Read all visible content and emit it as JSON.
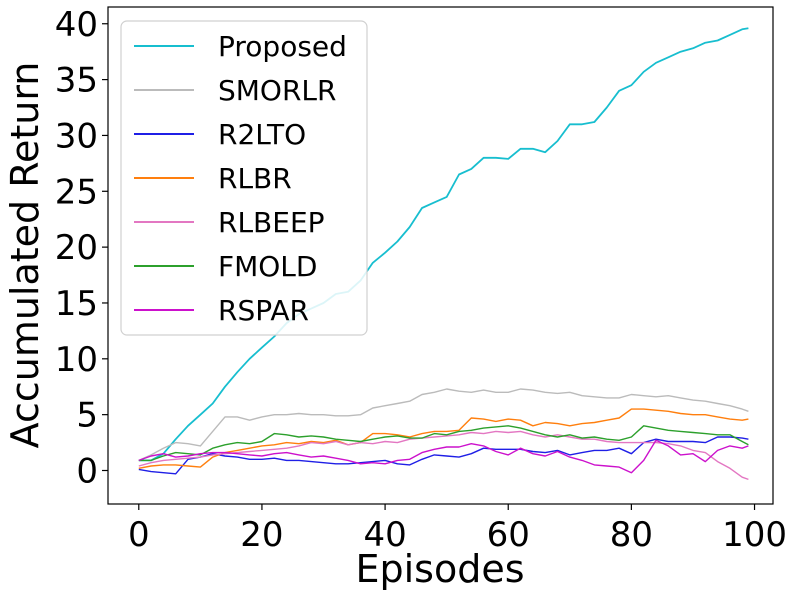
{
  "chart_data": {
    "type": "line",
    "xlabel": "Episodes",
    "ylabel": "Accumulated Return",
    "xlim": [
      -5,
      103
    ],
    "ylim": [
      -3,
      41.5
    ],
    "xticks": [
      0,
      20,
      40,
      60,
      80,
      100
    ],
    "yticks": [
      0,
      5,
      10,
      15,
      20,
      25,
      30,
      35,
      40
    ],
    "grid": false,
    "legend_position": "top-left",
    "series": [
      {
        "name": "Proposed",
        "color": "#17becf",
        "x": [
          0,
          2,
          4,
          6,
          8,
          10,
          12,
          14,
          16,
          18,
          20,
          22,
          24,
          26,
          28,
          30,
          32,
          34,
          36,
          38,
          40,
          42,
          44,
          46,
          48,
          50,
          52,
          54,
          56,
          58,
          60,
          62,
          64,
          66,
          68,
          70,
          72,
          74,
          76,
          78,
          80,
          82,
          84,
          86,
          88,
          90,
          92,
          94,
          96,
          98,
          99
        ],
        "values": [
          0.9,
          0.9,
          1.5,
          2.8,
          4.0,
          5.0,
          6.0,
          7.5,
          8.8,
          10.0,
          11.0,
          12.0,
          13.2,
          14.0,
          14.5,
          15.0,
          15.8,
          16.0,
          17.0,
          18.6,
          19.5,
          20.5,
          21.8,
          23.5,
          24.0,
          24.5,
          26.5,
          27.0,
          28.0,
          28.0,
          27.9,
          28.8,
          28.8,
          28.5,
          29.5,
          31.0,
          31.0,
          31.2,
          32.5,
          34.0,
          34.5,
          35.7,
          36.5,
          37.0,
          37.5,
          37.8,
          38.3,
          38.5,
          39.0,
          39.5,
          39.6
        ]
      },
      {
        "name": "SMORLR",
        "color": "#bbbbbb",
        "x": [
          0,
          2,
          4,
          6,
          8,
          10,
          12,
          14,
          16,
          18,
          20,
          22,
          24,
          26,
          28,
          30,
          32,
          34,
          36,
          38,
          40,
          42,
          44,
          46,
          48,
          50,
          52,
          54,
          56,
          58,
          60,
          62,
          64,
          66,
          68,
          70,
          72,
          74,
          76,
          78,
          80,
          82,
          84,
          86,
          88,
          90,
          92,
          94,
          96,
          98,
          99
        ],
        "values": [
          0.9,
          1.4,
          2.0,
          2.5,
          2.4,
          2.2,
          3.5,
          4.8,
          4.8,
          4.5,
          4.8,
          5.0,
          5.0,
          5.1,
          5.0,
          5.0,
          4.9,
          4.9,
          5.0,
          5.6,
          5.8,
          6.0,
          6.2,
          6.8,
          7.0,
          7.3,
          7.1,
          7.0,
          7.2,
          7.0,
          7.0,
          7.3,
          7.2,
          7.0,
          6.9,
          7.0,
          6.7,
          6.6,
          6.5,
          6.5,
          6.8,
          6.7,
          6.6,
          6.7,
          6.5,
          6.3,
          6.2,
          6.0,
          5.8,
          5.5,
          5.3
        ]
      },
      {
        "name": "R2LTO",
        "color": "#1f1fe6",
        "x": [
          0,
          2,
          4,
          6,
          8,
          10,
          12,
          14,
          16,
          18,
          20,
          22,
          24,
          26,
          28,
          30,
          32,
          34,
          36,
          38,
          40,
          42,
          44,
          46,
          48,
          50,
          52,
          54,
          56,
          58,
          60,
          62,
          64,
          66,
          68,
          70,
          72,
          74,
          76,
          78,
          80,
          82,
          84,
          86,
          88,
          90,
          92,
          94,
          96,
          98,
          99
        ],
        "values": [
          0.1,
          -0.1,
          -0.2,
          -0.3,
          1.0,
          1.2,
          1.5,
          1.3,
          1.2,
          1.0,
          1.0,
          1.1,
          0.9,
          0.9,
          0.8,
          0.7,
          0.6,
          0.6,
          0.7,
          0.8,
          0.9,
          0.6,
          0.5,
          1.0,
          1.4,
          1.3,
          1.2,
          1.5,
          2.0,
          1.9,
          1.9,
          1.9,
          1.7,
          1.6,
          1.8,
          1.4,
          1.6,
          1.8,
          1.8,
          2.0,
          1.5,
          2.5,
          2.8,
          2.6,
          2.6,
          2.6,
          2.5,
          3.0,
          3.0,
          2.9,
          2.8
        ]
      },
      {
        "name": "RLBR",
        "color": "#ff7f0e",
        "x": [
          0,
          2,
          4,
          6,
          8,
          10,
          12,
          14,
          16,
          18,
          20,
          22,
          24,
          26,
          28,
          30,
          32,
          34,
          36,
          38,
          40,
          42,
          44,
          46,
          48,
          50,
          52,
          54,
          56,
          58,
          60,
          62,
          64,
          66,
          68,
          70,
          72,
          74,
          76,
          78,
          80,
          82,
          84,
          86,
          88,
          90,
          92,
          94,
          96,
          98,
          99
        ],
        "values": [
          0.2,
          0.4,
          0.5,
          0.5,
          0.4,
          0.3,
          1.2,
          1.6,
          1.8,
          2.0,
          2.2,
          2.3,
          2.5,
          2.4,
          2.6,
          2.5,
          2.7,
          2.3,
          2.5,
          3.3,
          3.3,
          3.2,
          3.0,
          3.3,
          3.5,
          3.5,
          3.6,
          4.7,
          4.6,
          4.4,
          4.6,
          4.5,
          4.0,
          4.3,
          4.2,
          4.0,
          4.2,
          4.3,
          4.5,
          4.7,
          5.5,
          5.5,
          5.4,
          5.3,
          5.1,
          5.0,
          5.0,
          4.8,
          4.6,
          4.5,
          4.6
        ]
      },
      {
        "name": "RLBEEP",
        "color": "#e377c2",
        "x": [
          0,
          2,
          4,
          6,
          8,
          10,
          12,
          14,
          16,
          18,
          20,
          22,
          24,
          26,
          28,
          30,
          32,
          34,
          36,
          38,
          40,
          42,
          44,
          46,
          48,
          50,
          52,
          54,
          56,
          58,
          60,
          62,
          64,
          66,
          68,
          70,
          72,
          74,
          76,
          78,
          80,
          82,
          84,
          86,
          88,
          90,
          92,
          94,
          96,
          98,
          99
        ],
        "values": [
          0.4,
          0.7,
          0.9,
          1.0,
          1.1,
          1.2,
          1.4,
          1.5,
          1.6,
          1.7,
          1.8,
          1.9,
          2.0,
          2.2,
          2.5,
          2.4,
          2.6,
          2.3,
          2.5,
          2.4,
          2.6,
          2.5,
          2.8,
          2.9,
          3.0,
          3.1,
          3.2,
          3.4,
          3.3,
          3.5,
          3.4,
          3.5,
          3.2,
          3.0,
          3.2,
          3.0,
          2.8,
          2.8,
          2.6,
          2.5,
          2.5,
          2.5,
          2.5,
          2.4,
          2.2,
          1.8,
          1.6,
          0.8,
          0.2,
          -0.6,
          -0.8
        ]
      },
      {
        "name": "FMOLD",
        "color": "#2ca02c",
        "x": [
          0,
          2,
          4,
          6,
          8,
          10,
          12,
          14,
          16,
          18,
          20,
          22,
          24,
          26,
          28,
          30,
          32,
          34,
          36,
          38,
          40,
          42,
          44,
          46,
          48,
          50,
          52,
          54,
          56,
          58,
          60,
          62,
          64,
          66,
          68,
          70,
          72,
          74,
          76,
          78,
          80,
          82,
          84,
          86,
          88,
          90,
          92,
          94,
          96,
          98,
          99
        ],
        "values": [
          0.9,
          0.9,
          1.3,
          1.6,
          1.5,
          1.4,
          2.0,
          2.3,
          2.5,
          2.4,
          2.6,
          3.3,
          3.2,
          3.0,
          3.1,
          3.0,
          2.8,
          2.7,
          2.6,
          2.8,
          3.0,
          3.1,
          2.9,
          2.9,
          3.3,
          3.2,
          3.5,
          3.6,
          3.8,
          3.9,
          4.0,
          3.8,
          3.5,
          3.2,
          3.0,
          3.2,
          2.9,
          3.0,
          2.8,
          2.7,
          3.0,
          4.0,
          3.8,
          3.6,
          3.5,
          3.4,
          3.3,
          3.2,
          3.2,
          2.6,
          2.3
        ]
      },
      {
        "name": "RSPAR",
        "color": "#cc11cc",
        "x": [
          0,
          2,
          4,
          6,
          8,
          10,
          12,
          14,
          16,
          18,
          20,
          22,
          24,
          26,
          28,
          30,
          32,
          34,
          36,
          38,
          40,
          42,
          44,
          46,
          48,
          50,
          52,
          54,
          56,
          58,
          60,
          62,
          64,
          66,
          68,
          70,
          72,
          74,
          76,
          78,
          80,
          82,
          84,
          86,
          88,
          90,
          92,
          94,
          96,
          98,
          99
        ],
        "values": [
          0.9,
          1.3,
          1.5,
          1.2,
          1.3,
          1.5,
          1.6,
          1.6,
          1.5,
          1.4,
          1.3,
          1.5,
          1.6,
          1.4,
          1.2,
          1.3,
          1.1,
          0.9,
          0.6,
          0.7,
          0.6,
          0.9,
          1.0,
          1.6,
          1.9,
          2.1,
          2.1,
          2.4,
          2.2,
          1.7,
          1.4,
          2.0,
          1.5,
          1.3,
          1.7,
          1.2,
          0.9,
          0.5,
          0.4,
          0.3,
          -0.2,
          0.9,
          2.7,
          2.2,
          1.4,
          1.5,
          0.8,
          1.8,
          2.2,
          2.0,
          2.2
        ]
      }
    ]
  }
}
